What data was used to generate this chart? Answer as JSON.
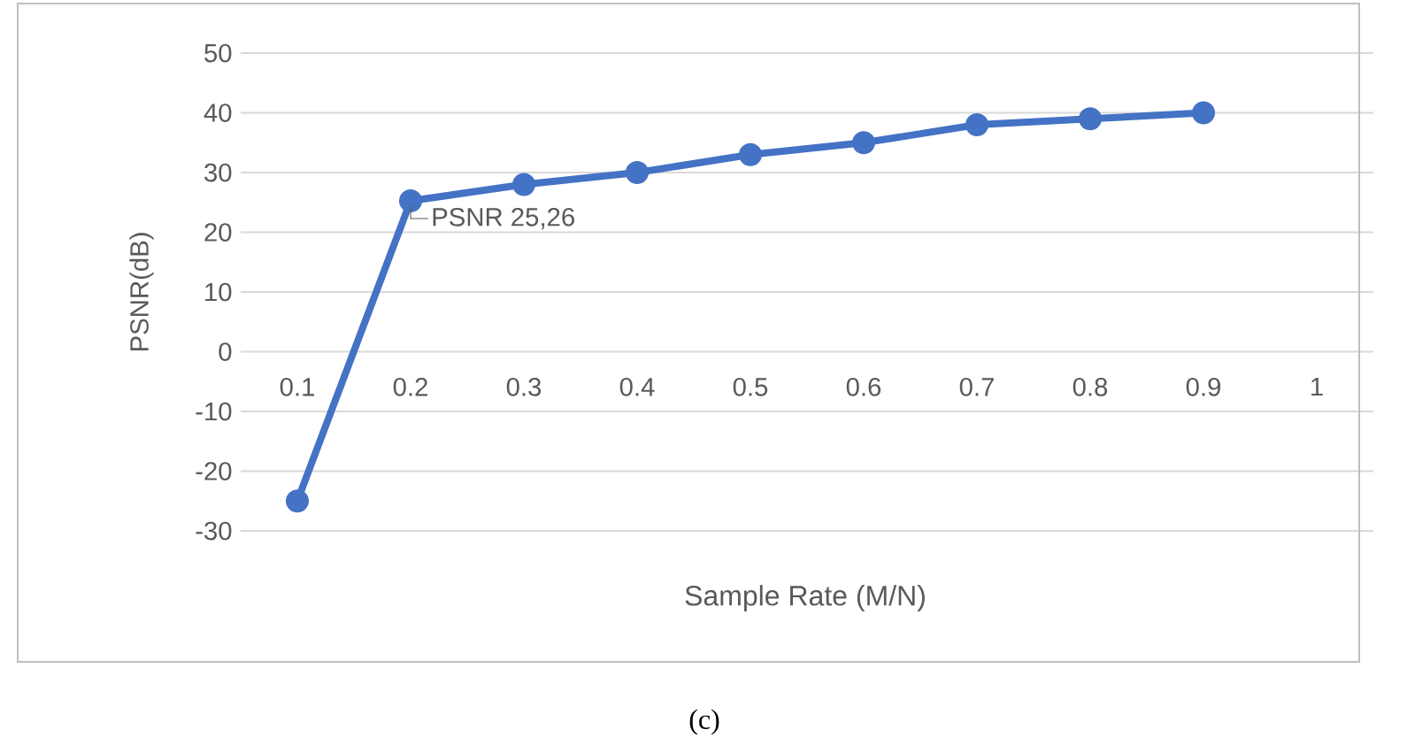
{
  "chart_data": {
    "type": "line",
    "xlabel": "Sample Rate (M/N)",
    "ylabel": "PSNR(dB)",
    "categories": [
      "0.1",
      "0.2",
      "0.3",
      "0.4",
      "0.5",
      "0.6",
      "0.7",
      "0.8",
      "0.9",
      "1"
    ],
    "series": [
      {
        "color": "#4472c4",
        "values": [
          -25,
          25.26,
          28,
          30,
          33,
          35,
          38,
          39,
          40,
          null
        ]
      }
    ],
    "ylim": [
      -30,
      50
    ],
    "yticks": [
      -30,
      -20,
      -10,
      0,
      10,
      20,
      30,
      40,
      50
    ],
    "grid": "y",
    "marker": "circle",
    "line_style": "solid",
    "annotations": [
      {
        "text": "PSNR 25,26",
        "x": "0.2",
        "y": 25.26
      },
      "(c)"
    ]
  }
}
